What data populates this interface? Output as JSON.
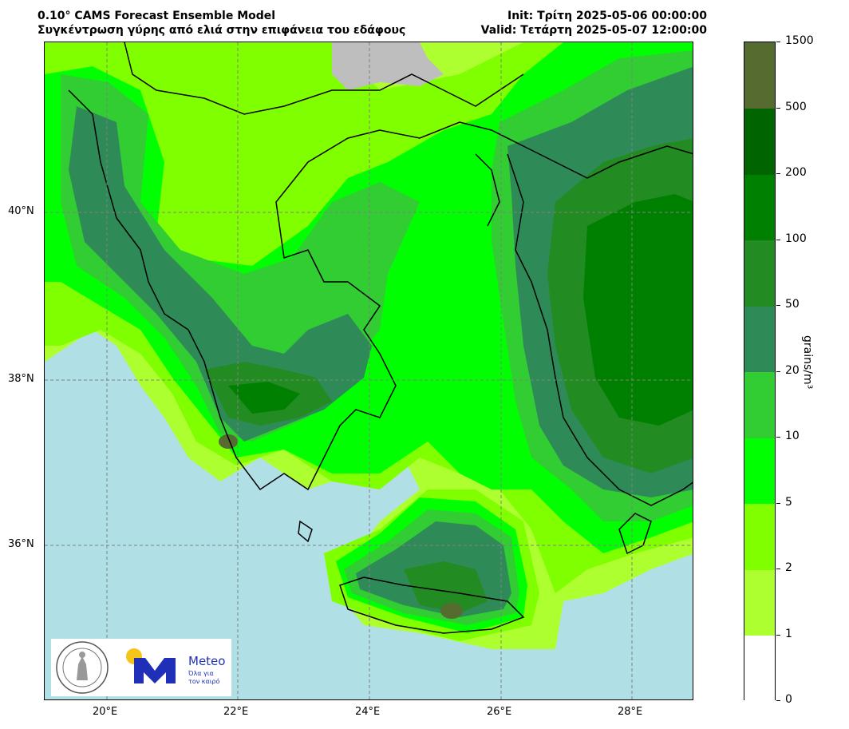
{
  "header": {
    "title_left_line1": "0.10° CAMS Forecast Ensemble Model",
    "title_left_line2": "Συγκέντρωση γύρης από ελιά στην επιφάνεια του εδάφους",
    "title_right_line1": "Init: Τρίτη 2025-05-06 00:00:00",
    "title_right_line2": "Valid: Τετάρτη 2025-05-07 12:00:00"
  },
  "map": {
    "lat_labels": [
      "40°N",
      "38°N",
      "36°N"
    ],
    "lon_labels": [
      "20°E",
      "22°E",
      "24°E",
      "26°E",
      "28°E"
    ],
    "sea_color": "#b0e0e6",
    "no_data_color": "#bebebe",
    "grid": "dashed"
  },
  "colorbar": {
    "unit_label": "grains/m³",
    "levels": [
      "0",
      "1",
      "2",
      "5",
      "10",
      "20",
      "50",
      "100",
      "200",
      "500",
      "1500"
    ],
    "colors": [
      "#ffffff",
      "#adff2f",
      "#7fff00",
      "#00ff00",
      "#32cd32",
      "#2e8b57",
      "#228b22",
      "#008000",
      "#006400",
      "#556b2f"
    ]
  },
  "logos": {
    "seal": "national-observatory-of-athens-seal",
    "meteo_word": "Meteo",
    "meteo_tagline_1": "Όλα για",
    "meteo_tagline_2": "τον καιρό"
  }
}
